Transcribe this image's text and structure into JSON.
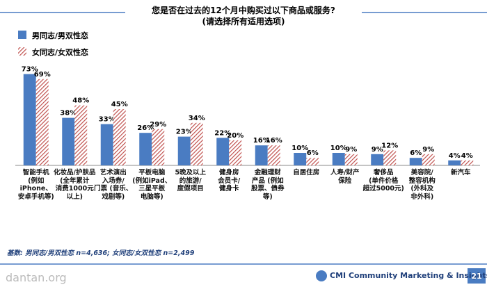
{
  "chart_data": {
    "type": "bar",
    "title": "您是否在过去的12个月中购买过以下商品或服务?",
    "subtitle": "(请选择所有适用选项)",
    "categories": [
      "智能手机\n(例如iPhone、\n安卓手机等)",
      "化妆品/护肤品\n(全年累计\n消费1000元\n以上)",
      "艺术演出\n入场券/\n门票 (音乐、\n戏剧等)",
      "平板电脑\n(例如iPad、\n三星平板\n电脑等)",
      "5晚及以上\n的旅游/\n度假项目",
      "健身房\n会员卡/\n健身卡",
      "金融理财\n产品 (例如\n股票、债券\n等)",
      "自居住房",
      "人寿/财产\n保险",
      "奢侈品\n(单件价格\n超过5000元)",
      "美容院/\n整容机构\n(外科及\n非外科)",
      "新汽车"
    ],
    "series": [
      {
        "name": "男同志/男双性恋",
        "color": "#4a7cc2",
        "values": [
          73,
          38,
          33,
          26,
          23,
          22,
          16,
          10,
          10,
          9,
          6,
          4
        ],
        "value_labels": [
          "73%",
          "38%",
          "33%",
          "26%",
          "23%",
          "22%",
          "16%",
          "10%",
          "10%",
          "9%",
          "6%",
          "4%"
        ]
      },
      {
        "name": "女同志/女双性恋",
        "color": "#c0504d",
        "hatched": true,
        "values": [
          69,
          48,
          45,
          29,
          34,
          20,
          16,
          6,
          9,
          12,
          9,
          4
        ],
        "value_labels": [
          "69%",
          "48%",
          "45%",
          "29%",
          "34%",
          "20%",
          "16%",
          "6%",
          "9%",
          "12%",
          "9%",
          "4%"
        ]
      }
    ],
    "footnote": "基数: 男同志/男双性恋 n=4,636; 女同志/女双性恋 n=2,499",
    "brand": "CMI Community Marketing & Insights",
    "page_number": "21",
    "watermark": "dantan.org"
  }
}
